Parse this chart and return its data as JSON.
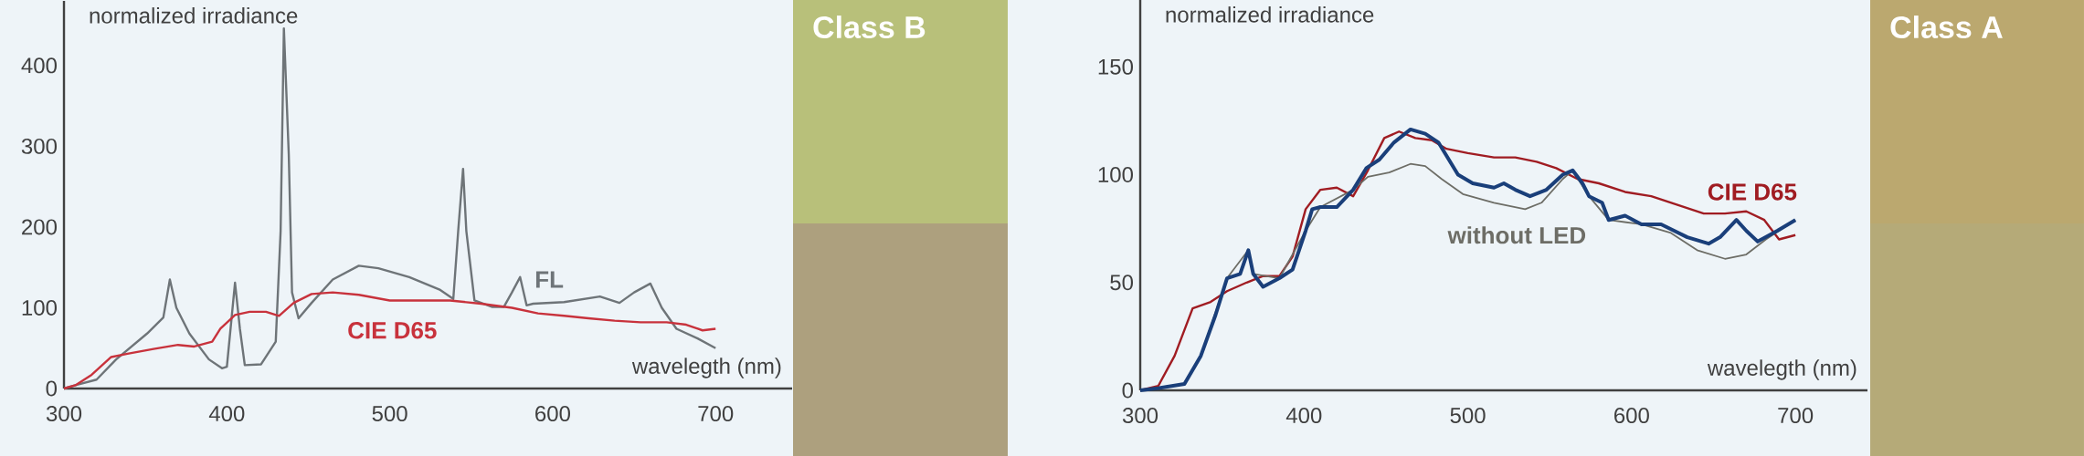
{
  "chart_data": [
    {
      "type": "line",
      "xlabel": "wavelegth (nm)",
      "ylabel": "normalized irradiance",
      "annotations": [
        "Class B"
      ],
      "xlim": [
        300,
        747
      ],
      "ylim": [
        0,
        480
      ],
      "xticks": [
        300,
        400,
        500,
        600,
        700
      ],
      "yticks": [
        0,
        100,
        200,
        300,
        400
      ],
      "grid": false,
      "series": [
        {
          "name": "FL",
          "color": "#6e7478",
          "x": [
            300,
            307,
            320,
            332,
            351,
            361,
            365,
            369,
            377,
            389,
            397,
            400,
            405,
            408,
            411,
            421,
            430,
            433,
            435,
            438,
            440,
            444,
            452,
            465,
            481,
            493,
            512,
            531,
            539,
            542,
            545,
            547,
            552,
            563,
            570,
            575,
            580,
            584,
            588,
            607,
            629,
            641,
            650,
            660,
            667,
            676,
            689,
            700
          ],
          "values": [
            0,
            4,
            11,
            36,
            68,
            88,
            135,
            100,
            68,
            36,
            25,
            27,
            131,
            74,
            29,
            30,
            58,
            195,
            446,
            290,
            119,
            87,
            106,
            135,
            152,
            149,
            138,
            122,
            111,
            195,
            272,
            195,
            109,
            101,
            101,
            119,
            138,
            103,
            105,
            107,
            114,
            106,
            119,
            130,
            100,
            74,
            62,
            50
          ]
        },
        {
          "name": "CIE D65",
          "color": "#c8323c",
          "x": [
            300,
            307,
            317,
            329,
            339,
            355,
            370,
            380,
            391,
            396,
            405,
            414,
            424,
            432,
            441,
            452,
            465,
            481,
            500,
            518,
            537,
            556,
            575,
            591,
            607,
            622,
            638,
            654,
            670,
            682,
            692,
            700
          ],
          "values": [
            0,
            4,
            17,
            39,
            43,
            49,
            54,
            52,
            58,
            74,
            91,
            95,
            95,
            90,
            106,
            117,
            119,
            116,
            109,
            109,
            109,
            105,
            100,
            93,
            90,
            87,
            84,
            82,
            82,
            79,
            72,
            74
          ]
        }
      ]
    },
    {
      "type": "line",
      "xlabel": "wavelegth (nm)",
      "ylabel": "normalized irradiance",
      "annotations": [
        "Class A"
      ],
      "xlim": [
        300,
        744
      ],
      "ylim": [
        0,
        181
      ],
      "xticks": [
        300,
        400,
        500,
        600,
        700
      ],
      "yticks": [
        0,
        50,
        100,
        150
      ],
      "grid": false,
      "series": [
        {
          "name": "CIE D65",
          "color": "#a01c22",
          "x": [
            300,
            311,
            321,
            332,
            343,
            353,
            365,
            375,
            385,
            393,
            401,
            410,
            420,
            430,
            439,
            449,
            458,
            468,
            478,
            487,
            500,
            516,
            529,
            542,
            554,
            567,
            580,
            596,
            612,
            628,
            644,
            657,
            670,
            681,
            690,
            700
          ],
          "values": [
            0,
            2,
            16,
            38,
            41,
            46,
            50,
            53,
            53,
            62,
            84,
            93,
            94,
            90,
            102,
            117,
            120,
            117,
            116,
            112,
            110,
            108,
            108,
            106,
            103,
            98,
            96,
            92,
            90,
            86,
            82,
            82,
            83,
            79,
            70,
            72
          ]
        },
        {
          "name": "without LED",
          "color": "#6d6d66",
          "x": [
            300,
            327,
            337,
            353,
            366,
            369,
            385,
            401,
            410,
            430,
            439,
            452,
            465,
            474,
            484,
            497,
            516,
            535,
            545,
            558,
            564,
            574,
            586,
            606,
            624,
            640,
            657,
            670,
            682,
            700
          ],
          "values": [
            0,
            3,
            16,
            52,
            65,
            54,
            52,
            74,
            85,
            93,
            99,
            101,
            105,
            104,
            98,
            91,
            87,
            84,
            87,
            98,
            102,
            90,
            79,
            77,
            73,
            65,
            61,
            63,
            70,
            79
          ]
        },
        {
          "color": "#1a3f7a",
          "x": [
            300,
            311,
            327,
            337,
            346,
            353,
            361,
            366,
            369,
            375,
            385,
            393,
            401,
            405,
            410,
            420,
            430,
            438,
            446,
            455,
            465,
            474,
            482,
            494,
            503,
            516,
            522,
            529,
            538,
            548,
            558,
            564,
            570,
            574,
            582,
            586,
            596,
            606,
            618,
            634,
            647,
            654,
            664,
            670,
            677,
            689,
            700
          ],
          "values": [
            0,
            1,
            3,
            16,
            35,
            52,
            54,
            65,
            54,
            48,
            52,
            56,
            74,
            84,
            85,
            85,
            93,
            103,
            107,
            115,
            121,
            119,
            115,
            100,
            96,
            94,
            96,
            93,
            90,
            93,
            100,
            102,
            96,
            90,
            87,
            79,
            81,
            77,
            77,
            71,
            68,
            71,
            79,
            74,
            69,
            74,
            79
          ]
        }
      ]
    }
  ]
}
